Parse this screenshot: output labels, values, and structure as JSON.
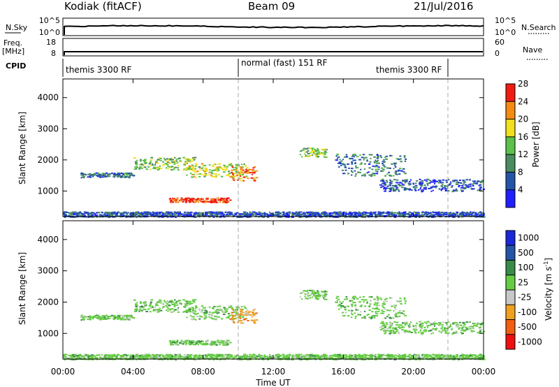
{
  "header": {
    "station": "Kodiak (fitACF)",
    "beam": "Beam 09",
    "date": "21/Jul/2016"
  },
  "sky_panel": {
    "left_label": "N.Sky",
    "right_label": "N.Search",
    "left_top_tick": "10^5",
    "left_bottom_tick": "10^0",
    "right_top_tick": "10^5",
    "right_bottom_tick": "10^0"
  },
  "freq_panel": {
    "left_label_1": "Freq.",
    "left_label_2": "[MHz]",
    "right_label": "Nave",
    "left_top_tick": "18",
    "left_bottom_tick": "8",
    "right_top_tick": "60",
    "right_bottom_tick": "0"
  },
  "cpid_panel": {
    "label": "CPID",
    "modes": [
      "themis 3300 RF",
      "normal (fast) 151 RF",
      "themis 3300 RF"
    ]
  },
  "power_panel": {
    "ylabel": "Slant Range [km]",
    "yticks": [
      "1000",
      "2000",
      "3000",
      "4000"
    ],
    "colorbar_label": "Power [dB]",
    "colorbar_ticks": [
      "4",
      "8",
      "12",
      "16",
      "20",
      "24",
      "28"
    ],
    "colors": [
      "#2020ff",
      "#2454a8",
      "#4a8c60",
      "#5cc04a",
      "#f2e020",
      "#f58a14",
      "#ef1c14"
    ]
  },
  "velocity_panel": {
    "ylabel": "Slant Range [km]",
    "yticks": [
      "1000",
      "2000",
      "3000",
      "4000"
    ],
    "colorbar_label_main": "Velocity [m s",
    "colorbar_label_sup": "-1",
    "colorbar_label_end": "]",
    "colorbar_ticks": [
      "1000",
      "500",
      "100",
      "25",
      "-25",
      "-100",
      "-500",
      "-1000"
    ],
    "colors": [
      "#1a28d8",
      "#2454a8",
      "#3a8a4a",
      "#66cc44",
      "#c8c8c8",
      "#f0a020",
      "#f06010",
      "#ee1010"
    ]
  },
  "chart_data": {
    "type": "heatmap",
    "title": "Kodiak (fitACF) Beam 09 21/Jul/2016",
    "xlabel": "Time UT",
    "ylabel": "Slant Range [km]",
    "x_ticks": [
      "00:00",
      "04:00",
      "08:00",
      "12:00",
      "16:00",
      "20:00",
      "00:00"
    ],
    "xlim_hours": [
      0,
      24
    ],
    "ylim_km": [
      180,
      4600
    ],
    "mode_change_times": [
      "10:00",
      "22:00"
    ],
    "scatter_regions": [
      {
        "start": "01:00",
        "end": "04:00",
        "range_km": [
          1450,
          1600
        ],
        "power_db": 8,
        "velocity_class": "25"
      },
      {
        "start": "04:00",
        "end": "07:30",
        "range_km": [
          1700,
          2100
        ],
        "power_db": 14,
        "velocity_class": "25"
      },
      {
        "start": "07:00",
        "end": "10:30",
        "range_km": [
          1450,
          1900
        ],
        "power_db": 16,
        "velocity_class": "25"
      },
      {
        "start": "09:30",
        "end": "11:00",
        "range_km": [
          1350,
          1800
        ],
        "power_db": 22,
        "velocity_class": "-100"
      },
      {
        "start": "06:00",
        "end": "09:30",
        "range_km": [
          650,
          800
        ],
        "power_db": 26,
        "velocity_class": "25"
      },
      {
        "start": "13:30",
        "end": "15:00",
        "range_km": [
          2100,
          2400
        ],
        "power_db": 14,
        "velocity_class": "25"
      },
      {
        "start": "15:30",
        "end": "19:30",
        "range_km": [
          1500,
          2200
        ],
        "power_db": 8,
        "velocity_class": "25"
      },
      {
        "start": "18:00",
        "end": "24:00",
        "range_km": [
          1000,
          1400
        ],
        "power_db": 6,
        "velocity_class": "25"
      },
      {
        "start": "00:00",
        "end": "24:00",
        "range_km": [
          180,
          350
        ],
        "power_db": 6,
        "velocity_class": "25"
      }
    ]
  }
}
